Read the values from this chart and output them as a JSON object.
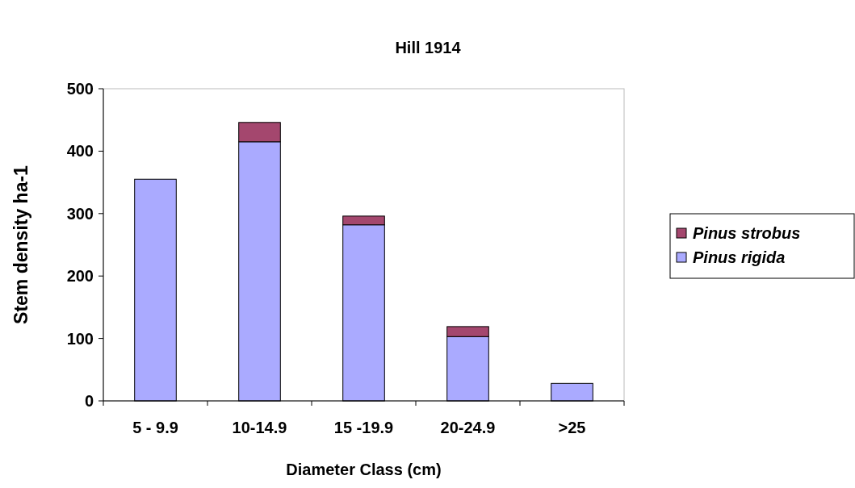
{
  "chart_data": {
    "type": "bar",
    "title": "Hill 1914",
    "xlabel": "Diameter Class (cm)",
    "ylabel": "Stem density ha-1",
    "categories": [
      "5 - 9.9",
      "10-14.9",
      "15 -19.9",
      "20-24.9",
      ">25"
    ],
    "stacked": true,
    "ylim": [
      0,
      500
    ],
    "yticks": [
      0,
      100,
      200,
      300,
      400,
      500
    ],
    "legend": "right",
    "series": [
      {
        "name": "Pinus rigida",
        "color": "#aaaaff",
        "values": [
          355,
          415,
          282,
          103,
          28
        ]
      },
      {
        "name": "Pinus strobus",
        "color": "#a4476e",
        "values": [
          0,
          31,
          14,
          16,
          0
        ]
      }
    ]
  }
}
